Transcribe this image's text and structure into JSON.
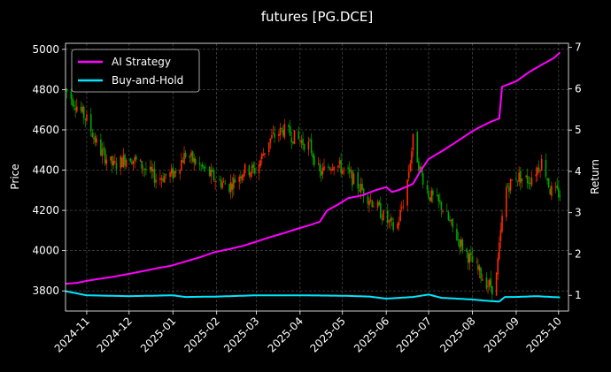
{
  "chart_data": {
    "type": "line",
    "title": "futures [PG.DCE]",
    "ylabel_left": "Price",
    "ylabel_right": "Return",
    "grid": true,
    "legend_position": "top-left",
    "y_left": {
      "lim": [
        3700,
        5030
      ],
      "ticks": [
        3800,
        4000,
        4200,
        4400,
        4600,
        4800,
        5000
      ]
    },
    "y_right": {
      "lim": [
        0.62,
        7.1
      ],
      "ticks": [
        1,
        2,
        3,
        4,
        5,
        6,
        7
      ]
    },
    "x_ticks": [
      "2024-11",
      "2024-12",
      "2025-01",
      "2025-02",
      "2025-03",
      "2025-04",
      "2025-05",
      "2025-06",
      "2025-07",
      "2025-08",
      "2025-09",
      "2025-10"
    ],
    "x_range": [
      "2024-10-17",
      "2025-10-08"
    ],
    "colors": {
      "up": "#ff2a00",
      "down": "#00a400",
      "ai": "#ff00ff",
      "bh": "#00e6ff",
      "grid": "#555555"
    },
    "series": [
      {
        "name": "AI Strategy",
        "axis": "right",
        "points": [
          [
            "2024-10-17",
            1.28
          ],
          [
            "2024-10-25",
            1.3
          ],
          [
            "2024-11-01",
            1.35
          ],
          [
            "2024-11-10",
            1.4
          ],
          [
            "2024-11-20",
            1.45
          ],
          [
            "2024-12-01",
            1.52
          ],
          [
            "2024-12-10",
            1.58
          ],
          [
            "2024-12-20",
            1.65
          ],
          [
            "2024-12-31",
            1.72
          ],
          [
            "2025-01-10",
            1.82
          ],
          [
            "2025-01-20",
            1.92
          ],
          [
            "2025-01-31",
            2.05
          ],
          [
            "2025-02-10",
            2.12
          ],
          [
            "2025-02-20",
            2.2
          ],
          [
            "2025-03-01",
            2.3
          ],
          [
            "2025-03-10",
            2.4
          ],
          [
            "2025-03-20",
            2.5
          ],
          [
            "2025-03-31",
            2.62
          ],
          [
            "2025-04-08",
            2.7
          ],
          [
            "2025-04-15",
            2.78
          ],
          [
            "2025-04-20",
            3.05
          ],
          [
            "2025-04-28",
            3.2
          ],
          [
            "2025-05-05",
            3.35
          ],
          [
            "2025-05-15",
            3.42
          ],
          [
            "2025-05-25",
            3.55
          ],
          [
            "2025-06-01",
            3.62
          ],
          [
            "2025-06-05",
            3.5
          ],
          [
            "2025-06-10",
            3.55
          ],
          [
            "2025-06-20",
            3.7
          ],
          [
            "2025-06-25",
            4.0
          ],
          [
            "2025-07-01",
            4.3
          ],
          [
            "2025-07-10",
            4.48
          ],
          [
            "2025-07-20",
            4.7
          ],
          [
            "2025-07-31",
            4.95
          ],
          [
            "2025-08-05",
            5.05
          ],
          [
            "2025-08-14",
            5.2
          ],
          [
            "2025-08-20",
            5.28
          ],
          [
            "2025-08-22",
            6.05
          ],
          [
            "2025-09-01",
            6.18
          ],
          [
            "2025-09-10",
            6.4
          ],
          [
            "2025-09-20",
            6.6
          ],
          [
            "2025-09-28",
            6.75
          ],
          [
            "2025-10-02",
            6.88
          ]
        ]
      },
      {
        "name": "Buy-and-Hold",
        "axis": "right",
        "points": [
          [
            "2024-10-17",
            1.1
          ],
          [
            "2024-11-01",
            1.0
          ],
          [
            "2024-12-01",
            0.98
          ],
          [
            "2025-01-01",
            1.0
          ],
          [
            "2025-01-10",
            0.96
          ],
          [
            "2025-02-01",
            0.97
          ],
          [
            "2025-03-01",
            1.0
          ],
          [
            "2025-04-01",
            1.0
          ],
          [
            "2025-05-01",
            0.99
          ],
          [
            "2025-05-20",
            0.97
          ],
          [
            "2025-06-01",
            0.92
          ],
          [
            "2025-06-20",
            0.96
          ],
          [
            "2025-07-01",
            1.02
          ],
          [
            "2025-07-10",
            0.94
          ],
          [
            "2025-08-01",
            0.9
          ],
          [
            "2025-08-10",
            0.87
          ],
          [
            "2025-08-20",
            0.85
          ],
          [
            "2025-08-24",
            0.96
          ],
          [
            "2025-09-01",
            0.96
          ],
          [
            "2025-09-15",
            0.98
          ],
          [
            "2025-10-02",
            0.95
          ]
        ]
      }
    ],
    "price_path": [
      [
        "2024-10-17",
        4800
      ],
      [
        "2024-10-22",
        4750
      ],
      [
        "2024-11-01",
        4650
      ],
      [
        "2024-11-10",
        4500
      ],
      [
        "2024-11-20",
        4420
      ],
      [
        "2024-12-01",
        4470
      ],
      [
        "2024-12-10",
        4420
      ],
      [
        "2024-12-20",
        4360
      ],
      [
        "2025-01-01",
        4380
      ],
      [
        "2025-01-10",
        4480
      ],
      [
        "2025-01-20",
        4420
      ],
      [
        "2025-02-01",
        4350
      ],
      [
        "2025-02-10",
        4320
      ],
      [
        "2025-02-20",
        4400
      ],
      [
        "2025-03-01",
        4400
      ],
      [
        "2025-03-10",
        4550
      ],
      [
        "2025-03-20",
        4600
      ],
      [
        "2025-03-31",
        4550
      ],
      [
        "2025-04-08",
        4520
      ],
      [
        "2025-04-15",
        4380
      ],
      [
        "2025-04-25",
        4440
      ],
      [
        "2025-05-05",
        4380
      ],
      [
        "2025-05-15",
        4300
      ],
      [
        "2025-05-25",
        4220
      ],
      [
        "2025-06-01",
        4150
      ],
      [
        "2025-06-08",
        4100
      ],
      [
        "2025-06-15",
        4300
      ],
      [
        "2025-06-20",
        4550
      ],
      [
        "2025-06-25",
        4400
      ],
      [
        "2025-07-01",
        4280
      ],
      [
        "2025-07-10",
        4220
      ],
      [
        "2025-07-20",
        4080
      ],
      [
        "2025-07-31",
        3950
      ],
      [
        "2025-08-10",
        3850
      ],
      [
        "2025-08-17",
        3800
      ],
      [
        "2025-08-24",
        4300
      ],
      [
        "2025-09-01",
        4370
      ],
      [
        "2025-09-10",
        4350
      ],
      [
        "2025-09-20",
        4450
      ],
      [
        "2025-09-25",
        4300
      ],
      [
        "2025-10-02",
        4280
      ]
    ]
  }
}
